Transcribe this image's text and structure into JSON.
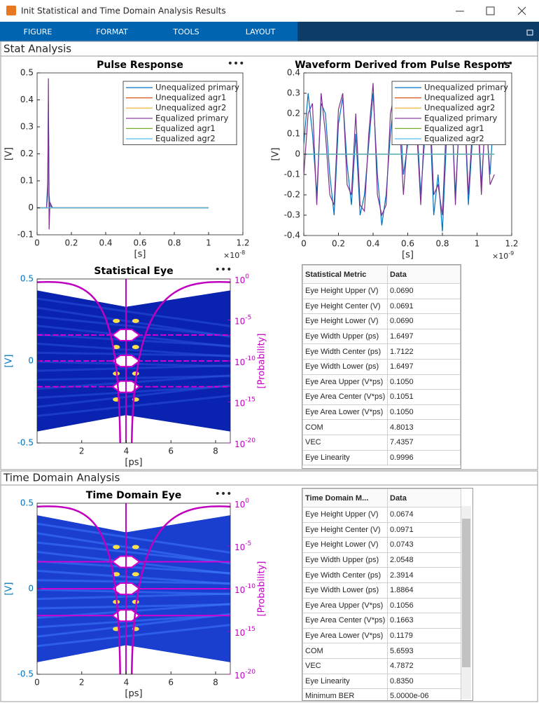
{
  "window": {
    "title": "Init Statistical and Time Domain Analysis Results"
  },
  "toolstrip": {
    "tabs": [
      "FIGURE",
      "FORMAT",
      "TOOLS",
      "LAYOUT"
    ]
  },
  "stat_analysis": {
    "title": "Stat Analysis",
    "pulse_response": {
      "type": "line",
      "title": "Pulse Response",
      "xlabel": "[s]",
      "ylabel": "[V]",
      "x_multiplier": "×10",
      "x_multiplier_exp": "-8",
      "xlim": [
        0,
        1.2
      ],
      "xticks": [
        0,
        0.2,
        0.4,
        0.6,
        0.8,
        1,
        1.2
      ],
      "ylim": [
        -0.1,
        0.5
      ],
      "yticks": [
        -0.1,
        0,
        0.1,
        0.2,
        0.3,
        0.4,
        0.5
      ],
      "legend": "northeast",
      "series": [
        {
          "name": "Unequalized primary",
          "color": "#0072bd",
          "x": [
            0,
            0.055,
            0.062,
            0.066,
            0.07,
            0.075,
            0.09,
            1.0
          ],
          "values": [
            0,
            0,
            0.1,
            0.39,
            0.05,
            0.01,
            0,
            0
          ]
        },
        {
          "name": "Unequalized agr1",
          "color": "#d95319",
          "x": [
            0,
            1.0
          ],
          "values": [
            0,
            0
          ]
        },
        {
          "name": "Unequalized agr2",
          "color": "#edb120",
          "x": [
            0,
            1.0
          ],
          "values": [
            0,
            0
          ]
        },
        {
          "name": "Equalized primary",
          "color": "#7e2f8e",
          "x": [
            0,
            0.055,
            0.062,
            0.066,
            0.07,
            0.075,
            0.09,
            1.0
          ],
          "values": [
            0,
            0,
            0.05,
            0.48,
            -0.08,
            0.02,
            0,
            0
          ]
        },
        {
          "name": "Equalized agr1",
          "color": "#77ac30",
          "x": [
            0,
            1.0
          ],
          "values": [
            0,
            0
          ]
        },
        {
          "name": "Equalized agr2",
          "color": "#4dbeee",
          "x": [
            0,
            1.0
          ],
          "values": [
            0,
            0
          ]
        }
      ]
    },
    "waveform": {
      "type": "line",
      "title": "Waveform Derived from Pulse Respons",
      "xlabel": "[s]",
      "ylabel": "[V]",
      "x_multiplier": "×10",
      "x_multiplier_exp": "-9",
      "xlim": [
        0,
        1.2
      ],
      "xticks": [
        0,
        0.2,
        0.4,
        0.6,
        0.8,
        1,
        1.2
      ],
      "ylim": [
        -0.4,
        0.4
      ],
      "yticks": [
        -0.4,
        -0.3,
        -0.2,
        -0.1,
        0,
        0.1,
        0.2,
        0.3,
        0.4
      ],
      "legend": "northeast",
      "series": [
        {
          "name": "Unequalized primary",
          "color": "#0072bd",
          "x": [
            0,
            0.025,
            0.05,
            0.075,
            0.1,
            0.125,
            0.15,
            0.175,
            0.2,
            0.225,
            0.25,
            0.275,
            0.3,
            0.325,
            0.35,
            0.375,
            0.4,
            0.425,
            0.45,
            0.475,
            0.5,
            0.525,
            0.55,
            0.575,
            0.6,
            0.625,
            0.65,
            0.675,
            0.7,
            0.725,
            0.75,
            0.775,
            0.8,
            0.825,
            0.85,
            0.875,
            0.9,
            0.925,
            0.95,
            0.975,
            1,
            1.025,
            1.05,
            1.075,
            1.1
          ],
          "values": [
            0.05,
            0.3,
            0.1,
            -0.2,
            0.25,
            0.2,
            -0.1,
            -0.3,
            0.15,
            0.28,
            -0.05,
            -0.25,
            0.1,
            -0.3,
            -0.2,
            0.05,
            0.3,
            -0.1,
            -0.35,
            -0.2,
            0.1,
            0.3,
            0.28,
            -0.1,
            0.05,
            0.3,
            0.2,
            -0.2,
            0.1,
            0.25,
            -0.3,
            -0.1,
            -0.38,
            0.1,
            0.3,
            -0.2,
            0.2,
            0.28,
            -0.25,
            0.1,
            0.3,
            -0.15,
            0.2,
            -0.1,
            0.25
          ]
        },
        {
          "name": "Unequalized agr1",
          "color": "#d95319",
          "x": [
            0,
            1.1
          ],
          "values": [
            0,
            0
          ]
        },
        {
          "name": "Unequalized agr2",
          "color": "#edb120",
          "x": [
            0,
            1.1
          ],
          "values": [
            0,
            0
          ]
        },
        {
          "name": "Equalized primary",
          "color": "#7e2f8e",
          "x": [
            0,
            0.025,
            0.05,
            0.075,
            0.1,
            0.125,
            0.15,
            0.175,
            0.2,
            0.225,
            0.25,
            0.275,
            0.3,
            0.325,
            0.35,
            0.375,
            0.4,
            0.425,
            0.45,
            0.475,
            0.5,
            0.525,
            0.55,
            0.575,
            0.6,
            0.625,
            0.65,
            0.675,
            0.7,
            0.725,
            0.75,
            0.775,
            0.8,
            0.825,
            0.85,
            0.875,
            0.9,
            0.925,
            0.95,
            0.975,
            1,
            1.025,
            1.05,
            1.075,
            1.1
          ],
          "values": [
            -0.1,
            0.2,
            0.25,
            -0.25,
            0.3,
            0.1,
            -0.2,
            -0.25,
            0.22,
            0.3,
            -0.15,
            -0.2,
            0.2,
            -0.25,
            -0.28,
            0.1,
            0.35,
            -0.2,
            -0.3,
            -0.25,
            0.2,
            0.3,
            0.2,
            -0.2,
            0.1,
            0.32,
            0.15,
            -0.25,
            0.2,
            0.3,
            -0.2,
            -0.15,
            -0.3,
            0.2,
            0.32,
            -0.25,
            0.25,
            0.3,
            -0.2,
            0.15,
            0.28,
            -0.2,
            0.25,
            -0.15,
            -0.1
          ]
        },
        {
          "name": "Equalized agr1",
          "color": "#77ac30",
          "x": [
            0,
            1.1
          ],
          "values": [
            0,
            0
          ]
        },
        {
          "name": "Equalized agr2",
          "color": "#4dbeee",
          "x": [
            0,
            1.1
          ],
          "values": [
            0,
            0
          ]
        }
      ]
    },
    "statistical_eye": {
      "type": "eye",
      "title": "Statistical Eye",
      "xlabel": "[ps]",
      "ylabel": "[V]",
      "y2label": "[Probability]",
      "ycolor": "#0072bd",
      "y2color": "#c000c0",
      "xlim": [
        0,
        8.66
      ],
      "xticks": [
        2,
        4,
        6,
        8
      ],
      "ylim": [
        -0.5,
        0.5
      ],
      "yticks": [
        -0.5,
        0,
        0.5
      ],
      "y2log": true,
      "y2lim": [
        1e-20,
        1
      ],
      "y2ticks": [
        {
          "value": 1,
          "label": "10",
          "sup": "0"
        },
        {
          "value": 1e-05,
          "label": "10",
          "sup": "-5"
        },
        {
          "value": 1e-10,
          "label": "10",
          "sup": "-10"
        },
        {
          "value": 1e-15,
          "label": "10",
          "sup": "-15"
        },
        {
          "value": 1e-20,
          "label": "10",
          "sup": "-20"
        }
      ]
    },
    "table": {
      "header": [
        "Statistical Metric",
        "Data"
      ],
      "rows": [
        [
          "Eye Height Upper (V)",
          "0.0690"
        ],
        [
          "Eye Height Center (V)",
          "0.0691"
        ],
        [
          "Eye Height Lower (V)",
          "0.0690"
        ],
        [
          "Eye Width Upper (ps)",
          "1.6497"
        ],
        [
          "Eye Width Center (ps)",
          "1.7122"
        ],
        [
          "Eye Width Lower (ps)",
          "1.6497"
        ],
        [
          "Eye Area Upper (V*ps)",
          "0.1050"
        ],
        [
          "Eye Area Center (V*ps)",
          "0.1051"
        ],
        [
          "Eye Area Lower (V*ps)",
          "0.1050"
        ],
        [
          "COM",
          "4.8013"
        ],
        [
          "VEC",
          "7.4357"
        ],
        [
          "Eye Linearity",
          "0.9996"
        ]
      ]
    }
  },
  "time_domain_analysis": {
    "title": "Time Domain Analysis",
    "time_domain_eye": {
      "type": "eye",
      "title": "Time Domain Eye",
      "xlabel": "[ps]",
      "ylabel": "[V]",
      "y2label": "[Probability]",
      "ycolor": "#0072bd",
      "y2color": "#c000c0",
      "xlim": [
        0,
        8.66
      ],
      "xticks": [
        0,
        2,
        4,
        6,
        8
      ],
      "ylim": [
        -0.5,
        0.5
      ],
      "yticks": [
        -0.5,
        0,
        0.5
      ],
      "y2log": true,
      "y2lim": [
        1e-20,
        1
      ],
      "y2ticks": [
        {
          "value": 1,
          "label": "10",
          "sup": "0"
        },
        {
          "value": 1e-05,
          "label": "10",
          "sup": "-5"
        },
        {
          "value": 1e-10,
          "label": "10",
          "sup": "-10"
        },
        {
          "value": 1e-15,
          "label": "10",
          "sup": "-15"
        },
        {
          "value": 1e-20,
          "label": "10",
          "sup": "-20"
        }
      ]
    },
    "table": {
      "header": [
        "Time Domain M...",
        "Data"
      ],
      "rows": [
        [
          "Eye Height Upper (V)",
          "0.0674"
        ],
        [
          "Eye Height Center (V)",
          "0.0971"
        ],
        [
          "Eye Height Lower (V)",
          "0.0743"
        ],
        [
          "Eye Width Upper (ps)",
          "2.0548"
        ],
        [
          "Eye Width Center (ps)",
          "2.3914"
        ],
        [
          "Eye Width Lower (ps)",
          "1.8864"
        ],
        [
          "Eye Area Upper (V*ps)",
          "0.1056"
        ],
        [
          "Eye Area Center (V*ps)",
          "0.1663"
        ],
        [
          "Eye Area Lower (V*ps)",
          "0.1179"
        ],
        [
          "COM",
          "5.6593"
        ],
        [
          "VEC",
          "4.7872"
        ],
        [
          "Eye Linearity",
          "0.8350"
        ],
        [
          "Minimum BER",
          "5.0000e-06"
        ]
      ]
    }
  }
}
